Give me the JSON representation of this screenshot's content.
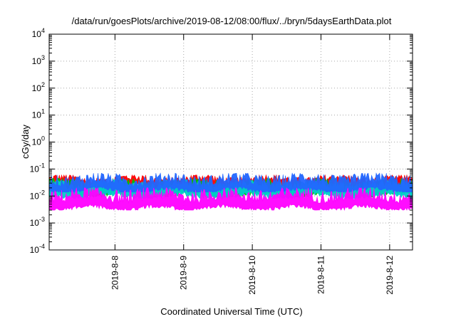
{
  "chart_data": {
    "type": "area",
    "title": "/data/run/goesPlots/archive/2019-08-12/08:00/flux/../bryn/5daysEarthData.plot",
    "xlabel": "Coordinated Universal Time (UTC)",
    "ylabel": "cGy/day",
    "yscale": "log",
    "ylim": [
      0.0001,
      10000
    ],
    "xlim": [
      "2019-08-07T01:00",
      "2019-08-12T08:00"
    ],
    "grid": true,
    "x_ticks": [
      "2019-8-8",
      "2019-8-9",
      "2019-8-10",
      "2019-8-11",
      "2019-8-12"
    ],
    "y_ticks": [
      {
        "base": "10",
        "exp": "-4"
      },
      {
        "base": "10",
        "exp": "-3"
      },
      {
        "base": "10",
        "exp": "-2"
      },
      {
        "base": "10",
        "exp": "-1"
      },
      {
        "base": "10",
        "exp": "0"
      },
      {
        "base": "10",
        "exp": "1"
      },
      {
        "base": "10",
        "exp": "2"
      },
      {
        "base": "10",
        "exp": "3"
      },
      {
        "base": "10",
        "exp": "4"
      }
    ],
    "series": [
      {
        "color": "#ff0000",
        "typical": 0.03,
        "peak": 0.06,
        "trough": 0.02
      },
      {
        "color": "#00c000",
        "typical": 0.02,
        "peak": 0.045,
        "trough": 0.009
      },
      {
        "color": "#00cccc",
        "typical": 0.018,
        "peak": 0.04,
        "trough": 0.008
      },
      {
        "color": "#2266ff",
        "typical": 0.025,
        "peak": 0.07,
        "trough": 0.014
      },
      {
        "color": "#ff00ff",
        "typical": 0.006,
        "peak": 0.02,
        "trough": 0.003
      }
    ]
  }
}
